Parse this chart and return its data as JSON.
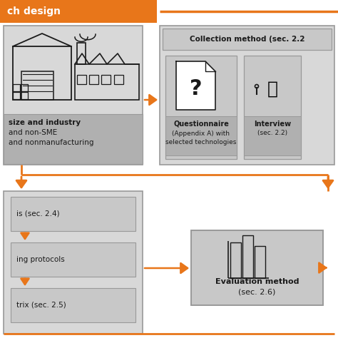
{
  "orange": "#E8761A",
  "gray_edge": "#999999",
  "light_gray": "#D8D8D8",
  "mid_gray": "#C8C8C8",
  "dark_gray": "#B0B0B0",
  "white": "#FFFFFF",
  "dark_text": "#1A1A1A",
  "background": "#FFFFFF",
  "title": "ch design",
  "collection_header": "Collection method (sec. 2.2",
  "q_label1": "Questionnaire",
  "q_label2": "(Appendix A) with",
  "q_label3": "selected technologies",
  "i_label1": "Interview",
  "i_label2": "(sec. 2.2)",
  "industry_label1": "size and industry",
  "industry_label2": "and non-SME",
  "industry_label3": "and nonmanufacturing",
  "bl_item1": "is (sec. 2.4)",
  "bl_item2": "ing protocols",
  "bl_item3": "trix (sec. 2.5)",
  "eval_label1": "Evaluation method",
  "eval_label2": "(sec. 2.6)"
}
